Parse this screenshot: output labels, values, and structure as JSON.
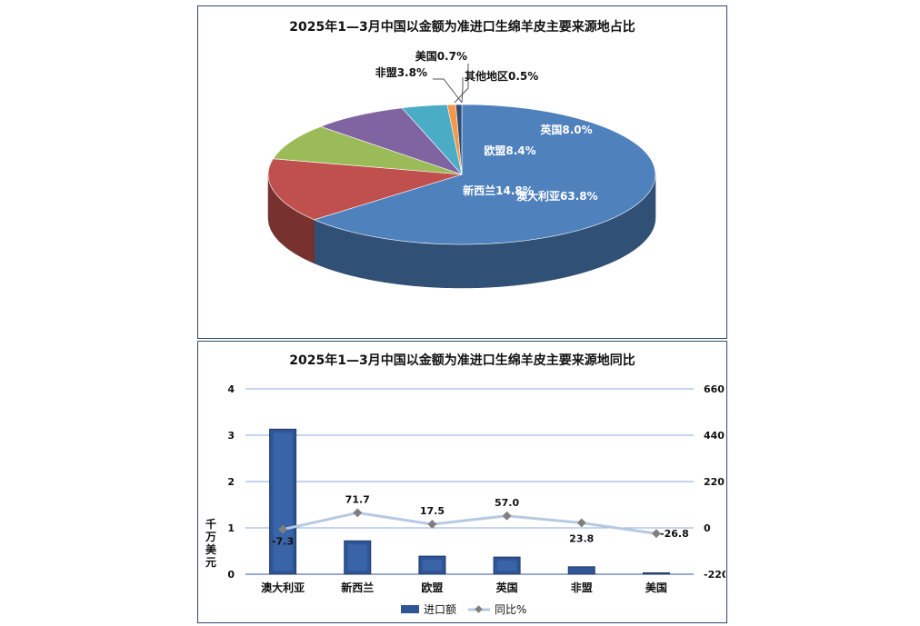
{
  "pie_chart": {
    "title": "2025年1—3月中国以金额为准进口生绵羊皮主要来源地占比"
  },
  "bar_chart": {
    "title": "2025年1—3月中国以金额为准进口生绵羊皮主要来源地同比",
    "y_axis_label": "千万美元",
    "legend_bar": "进口额",
    "legend_line": "同比%"
  },
  "colors": {
    "bar": "#2f5597",
    "line": "#b7c9e2",
    "australia": "#4f81bd",
    "new_zealand": "#c0504d",
    "eu": "#9bbb59",
    "uk": "#8064a2",
    "africa": "#4bacc6",
    "usa": "#f79646",
    "other": "#2c4d75"
  },
  "chart_data": [
    {
      "type": "pie",
      "title": "2025年1—3月中国以金额为准进口生绵羊皮主要来源地占比",
      "slices": [
        {
          "label": "澳大利亚",
          "value": 63.8,
          "text": "澳大利亚63.8%",
          "color": "#4f81bd"
        },
        {
          "label": "新西兰",
          "value": 14.8,
          "text": "新西兰14.8%",
          "color": "#c0504d"
        },
        {
          "label": "欧盟",
          "value": 8.4,
          "text": "欧盟8.4%",
          "color": "#9bbb59"
        },
        {
          "label": "英国",
          "value": 8.0,
          "text": "英国8.0%",
          "color": "#8064a2"
        },
        {
          "label": "非盟",
          "value": 3.8,
          "text": "非盟3.8%",
          "color": "#4bacc6"
        },
        {
          "label": "美国",
          "value": 0.7,
          "text": "美国0.7%",
          "color": "#f79646"
        },
        {
          "label": "其他地区",
          "value": 0.5,
          "text": "其他地区0.5%",
          "color": "#2c4d75"
        }
      ]
    },
    {
      "type": "bar",
      "title": "2025年1—3月中国以金额为准进口生绵羊皮主要来源地同比",
      "categories": [
        "澳大利亚",
        "新西兰",
        "欧盟",
        "英国",
        "非盟",
        "美国"
      ],
      "series": [
        {
          "name": "进口额",
          "type": "bar",
          "axis": "left",
          "values": [
            3.13,
            0.72,
            0.39,
            0.37,
            0.16,
            0.03
          ]
        },
        {
          "name": "同比%",
          "type": "line",
          "axis": "right",
          "values": [
            -7.3,
            71.7,
            17.5,
            57.0,
            23.8,
            -26.8
          ]
        }
      ],
      "line_labels": [
        "-7.3",
        "71.7",
        "17.5",
        "57.0",
        "23.8",
        "-26.8"
      ],
      "ylabel": "千万美元",
      "ylim": [
        0,
        4
      ],
      "yticks": [
        "0",
        "1",
        "2",
        "3",
        "4"
      ],
      "y2lim": [
        -220,
        660
      ],
      "y2ticks": [
        "-220",
        "0",
        "220",
        "440",
        "660"
      ],
      "grid": true,
      "legend": "bottom"
    }
  ]
}
